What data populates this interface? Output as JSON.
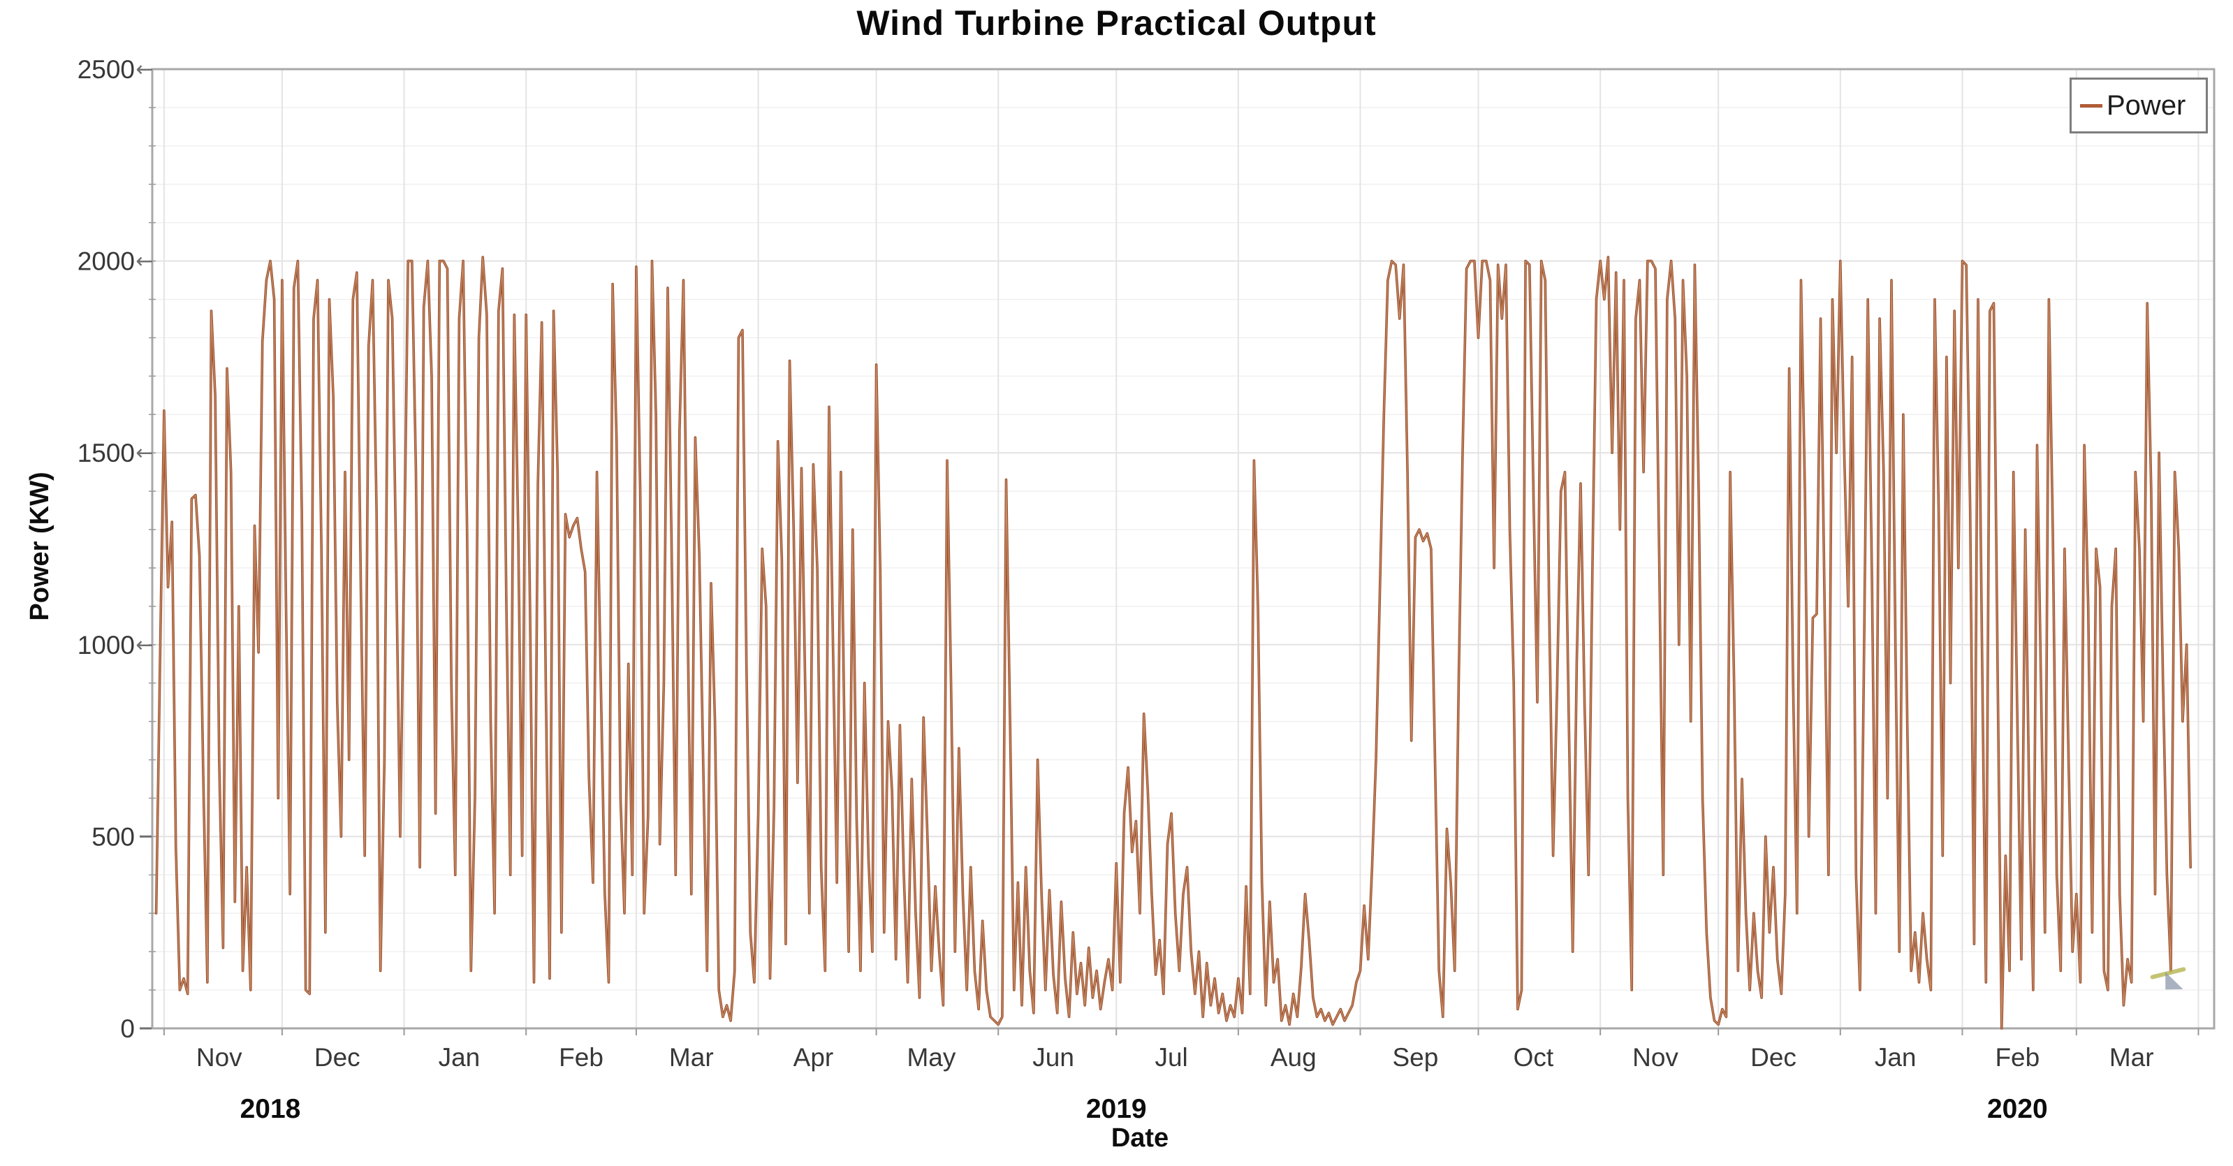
{
  "header": {
    "title": "Wind Turbine Practical Output"
  },
  "axes": {
    "y_title": "Power (KW)",
    "x_title": "Date",
    "y_tick_labels": [
      "0",
      "500",
      "1000",
      "1500",
      "2000",
      "2500"
    ],
    "year_labels": [
      "2018",
      "2019",
      "2020"
    ]
  },
  "legend": {
    "label": "Power",
    "position": "top-right"
  },
  "colors": {
    "line_dark": "#9a5130",
    "line_light": "#c98b63",
    "grid_minor": "#efefef",
    "grid_major": "#e2e2e2",
    "grid_vertical": "#e4e4e4",
    "axis_frame": "#a8a8a8",
    "tick_mark": "#9a9a9a",
    "tick_arrow": "#707070",
    "tick_text": "#383838",
    "year_text": "#0d0d0d",
    "legend_swatch": "#b05c38"
  },
  "chart_data": {
    "type": "line",
    "title": "Wind Turbine Practical Output",
    "xlabel": "Date",
    "ylabel": "Power (KW)",
    "ylim": [
      0,
      2500
    ],
    "y_ticks": [
      0,
      500,
      1000,
      1500,
      2000,
      2500
    ],
    "y_minor_step": 100,
    "grid": "on",
    "legend_position": "top-right",
    "series_name": "Power",
    "x_axis": {
      "start_date": "2018-10-29",
      "total_days": 524,
      "month_start_days": [
        3,
        33,
        64,
        95,
        123,
        154,
        184,
        215,
        245,
        276,
        307,
        337,
        368,
        398,
        429,
        460,
        489,
        520
      ],
      "month_labels": [
        {
          "label": "Nov",
          "day": 17
        },
        {
          "label": "Dec",
          "day": 47
        },
        {
          "label": "Jan",
          "day": 78
        },
        {
          "label": "Feb",
          "day": 109
        },
        {
          "label": "Mar",
          "day": 137
        },
        {
          "label": "Apr",
          "day": 168
        },
        {
          "label": "May",
          "day": 198
        },
        {
          "label": "Jun",
          "day": 229
        },
        {
          "label": "Jul",
          "day": 259
        },
        {
          "label": "Aug",
          "day": 290
        },
        {
          "label": "Sep",
          "day": 321
        },
        {
          "label": "Oct",
          "day": 351
        },
        {
          "label": "Nov",
          "day": 382
        },
        {
          "label": "Dec",
          "day": 412
        },
        {
          "label": "Jan",
          "day": 443
        },
        {
          "label": "Feb",
          "day": 474
        },
        {
          "label": "Mar",
          "day": 503
        }
      ],
      "year_labels": [
        {
          "label": "2018",
          "day": 30
        },
        {
          "label": "2019",
          "day": 245
        },
        {
          "label": "2020",
          "day": 474
        }
      ]
    },
    "series": [
      {
        "name": "Power",
        "unit": "KW",
        "start_day": 1,
        "step_days": 1,
        "values": [
          300,
          980,
          1610,
          1150,
          1320,
          470,
          100,
          130,
          90,
          1380,
          1390,
          1230,
          640,
          120,
          1870,
          1650,
          700,
          210,
          1720,
          1450,
          330,
          1100,
          150,
          420,
          100,
          1310,
          980,
          1790,
          1950,
          2000,
          1900,
          600,
          1950,
          1100,
          350,
          1930,
          2000,
          1350,
          100,
          90,
          1850,
          1950,
          1250,
          250,
          1900,
          1650,
          850,
          500,
          1450,
          700,
          1900,
          1970,
          1150,
          450,
          1780,
          1950,
          1350,
          150,
          700,
          1950,
          1850,
          1200,
          500,
          1200,
          2000,
          2000,
          1450,
          420,
          1880,
          2000,
          1700,
          560,
          2000,
          2000,
          1980,
          900,
          400,
          1850,
          2000,
          1300,
          150,
          600,
          1800,
          2010,
          1860,
          800,
          300,
          1870,
          1980,
          1100,
          400,
          1860,
          1300,
          450,
          1860,
          1100,
          120,
          1420,
          1840,
          900,
          130,
          1870,
          1450,
          250,
          1340,
          1280,
          1310,
          1330,
          1250,
          1190,
          650,
          380,
          1450,
          900,
          350,
          120,
          1940,
          1530,
          600,
          300,
          950,
          400,
          1985,
          1400,
          300,
          550,
          2000,
          1600,
          480,
          900,
          1930,
          1250,
          400,
          1560,
          1950,
          1100,
          350,
          1540,
          1240,
          700,
          150,
          1160,
          800,
          100,
          30,
          60,
          20,
          150,
          1800,
          1820,
          950,
          250,
          120,
          560,
          1250,
          1100,
          130,
          570,
          1530,
          1220,
          220,
          1740,
          1300,
          640,
          1460,
          850,
          300,
          1470,
          1200,
          420,
          150,
          1620,
          1000,
          380,
          1450,
          700,
          200,
          1300,
          550,
          150,
          900,
          450,
          200,
          1730,
          1200,
          250,
          800,
          620,
          180,
          790,
          400,
          120,
          650,
          300,
          80,
          810,
          500,
          150,
          370,
          200,
          60,
          1480,
          900,
          200,
          730,
          350,
          100,
          420,
          150,
          50,
          280,
          100,
          30,
          20,
          10,
          30,
          1430,
          800,
          100,
          380,
          60,
          420,
          150,
          40,
          700,
          350,
          100,
          360,
          140,
          40,
          330,
          130,
          30,
          250,
          90,
          170,
          60,
          210,
          80,
          150,
          50,
          120,
          180,
          100,
          430,
          120,
          560,
          680,
          460,
          540,
          300,
          820,
          620,
          350,
          140,
          230,
          90,
          480,
          560,
          300,
          150,
          350,
          420,
          200,
          90,
          200,
          30,
          170,
          60,
          130,
          40,
          90,
          20,
          60,
          30,
          130,
          40,
          370,
          90,
          1480,
          1100,
          380,
          60,
          330,
          120,
          180,
          20,
          60,
          10,
          90,
          30,
          160,
          350,
          230,
          80,
          30,
          50,
          20,
          40,
          10,
          30,
          50,
          20,
          40,
          60,
          120,
          150,
          320,
          180,
          420,
          700,
          1150,
          1600,
          1950,
          2000,
          1990,
          1850,
          1990,
          1450,
          750,
          1280,
          1300,
          1270,
          1290,
          1250,
          700,
          150,
          30,
          520,
          380,
          150,
          900,
          1500,
          1980,
          2000,
          2000,
          1800,
          2000,
          2000,
          1950,
          1200,
          1990,
          1850,
          1990,
          1300,
          900,
          50,
          100,
          2000,
          1990,
          1400,
          850,
          2000,
          1950,
          1100,
          450,
          880,
          1400,
          1450,
          800,
          200,
          950,
          1420,
          850,
          400,
          1200,
          1900,
          2000,
          1900,
          2010,
          1500,
          1970,
          1300,
          1950,
          600,
          100,
          1850,
          1950,
          1450,
          2000,
          2000,
          1980,
          1200,
          400,
          1900,
          2000,
          1850,
          1000,
          1950,
          1700,
          800,
          1990,
          1400,
          600,
          250,
          80,
          20,
          10,
          50,
          30,
          1450,
          900,
          150,
          650,
          300,
          100,
          300,
          150,
          80,
          500,
          250,
          420,
          180,
          90,
          350,
          1720,
          900,
          300,
          1950,
          1400,
          500,
          1070,
          1080,
          1850,
          1100,
          400,
          1900,
          1500,
          2000,
          1500,
          1100,
          1750,
          400,
          100,
          950,
          1900,
          1200,
          300,
          1850,
          1450,
          600,
          1950,
          1000,
          200,
          1600,
          800,
          150,
          250,
          120,
          300,
          180,
          100,
          1900,
          1350,
          450,
          1750,
          900,
          1870,
          1200,
          2000,
          1990,
          1350,
          220,
          1900,
          1000,
          120,
          1870,
          1890,
          900,
          0,
          450,
          150,
          1450,
          800,
          180,
          1300,
          600,
          100,
          1520,
          900,
          250,
          1900,
          1300,
          400,
          150,
          1250,
          700,
          200,
          350,
          120,
          1520,
          1100,
          250,
          1250,
          1150,
          150,
          100,
          1100,
          1250,
          350,
          60,
          180,
          120,
          1450,
          1250,
          800,
          1890,
          1400,
          350,
          1500,
          900,
          400,
          150,
          1450,
          1250,
          800,
          1000,
          420
        ]
      }
    ]
  }
}
